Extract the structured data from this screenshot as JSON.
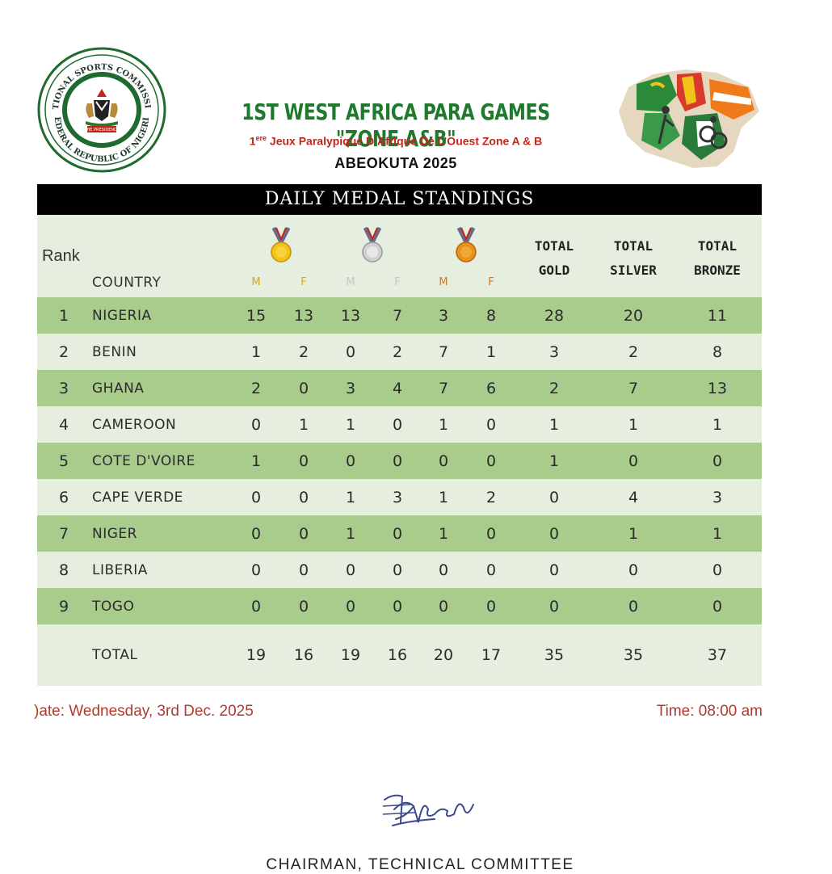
{
  "header": {
    "seal_text_top": "NATIONAL SPORTS COMMISSION",
    "seal_text_bottom": "FEDERAL REPUBLIC OF NIGERIA",
    "seal_ribbon": "THE PRESIDENCY",
    "title": "1ST WEST AFRICA PARA GAMES \"ZONE A&B\"",
    "subtitle_num": "1",
    "subtitle_sup": "ere",
    "subtitle_rest": " Jeux Paralypique D’Afrique De L’Ouest Zone A & B",
    "venue": "ABEOKUTA 2025"
  },
  "banner": "DAILY MEDAL STANDINGS",
  "table": {
    "rank_header": "Rank",
    "country_header": "COUNTRY",
    "sub_headers": [
      "M",
      "F",
      "M",
      "F",
      "M",
      "F"
    ],
    "total_gold": [
      "TOTAL",
      "GOLD"
    ],
    "total_silver": [
      "TOTAL",
      "SILVER"
    ],
    "total_bronze": [
      "TOTAL",
      "BRONZE"
    ],
    "rows": [
      {
        "rank": "1",
        "country": "NIGERIA",
        "gm": "15",
        "gf": "13",
        "sm": "13",
        "sf": "7",
        "bm": "3",
        "bf": "8",
        "tg": "28",
        "ts": "20",
        "tb": "11"
      },
      {
        "rank": "2",
        "country": "BENIN",
        "gm": "1",
        "gf": "2",
        "sm": "0",
        "sf": "2",
        "bm": "7",
        "bf": "1",
        "tg": "3",
        "ts": "2",
        "tb": "8"
      },
      {
        "rank": "3",
        "country": "GHANA",
        "gm": "2",
        "gf": "0",
        "sm": "3",
        "sf": "4",
        "bm": "7",
        "bf": "6",
        "tg": "2",
        "ts": "7",
        "tb": "13"
      },
      {
        "rank": "4",
        "country": "CAMEROON",
        "gm": "0",
        "gf": "1",
        "sm": "1",
        "sf": "0",
        "bm": "1",
        "bf": "0",
        "tg": "1",
        "ts": "1",
        "tb": "1"
      },
      {
        "rank": "5",
        "country": "COTE D'VOIRE",
        "gm": "1",
        "gf": "0",
        "sm": "0",
        "sf": "0",
        "bm": "0",
        "bf": "0",
        "tg": "1",
        "ts": "0",
        "tb": "0"
      },
      {
        "rank": "6",
        "country": "CAPE VERDE",
        "gm": "0",
        "gf": "0",
        "sm": "1",
        "sf": "3",
        "bm": "1",
        "bf": "2",
        "tg": "0",
        "ts": "4",
        "tb": "3"
      },
      {
        "rank": "7",
        "country": "NIGER",
        "gm": "0",
        "gf": "0",
        "sm": "1",
        "sf": "0",
        "bm": "1",
        "bf": "0",
        "tg": "0",
        "ts": "1",
        "tb": "1"
      },
      {
        "rank": "8",
        "country": "LIBERIA",
        "gm": "0",
        "gf": "0",
        "sm": "0",
        "sf": "0",
        "bm": "0",
        "bf": "0",
        "tg": "0",
        "ts": "0",
        "tb": "0"
      },
      {
        "rank": "9",
        "country": "TOGO",
        "gm": "0",
        "gf": "0",
        "sm": "0",
        "sf": "0",
        "bm": "0",
        "bf": "0",
        "tg": "0",
        "ts": "0",
        "tb": "0"
      }
    ],
    "total": {
      "label": "TOTAL",
      "gm": "19",
      "gf": "16",
      "sm": "19",
      "sf": "16",
      "bm": "20",
      "bf": "17",
      "tg": "35",
      "ts": "35",
      "tb": "37"
    }
  },
  "footer": {
    "date": ")ate: Wednesday, 3rd Dec. 2025",
    "time": "Time: 08:00 am",
    "chairman": "CHAIRMAN, TECHNICAL COMMITTEE"
  },
  "colors": {
    "title_green": "#1f7a2e",
    "subtitle_red": "#c0261c",
    "row_dark": "#a9cc8c",
    "row_light": "#e6efdf",
    "footer_red": "#b03a2e"
  }
}
